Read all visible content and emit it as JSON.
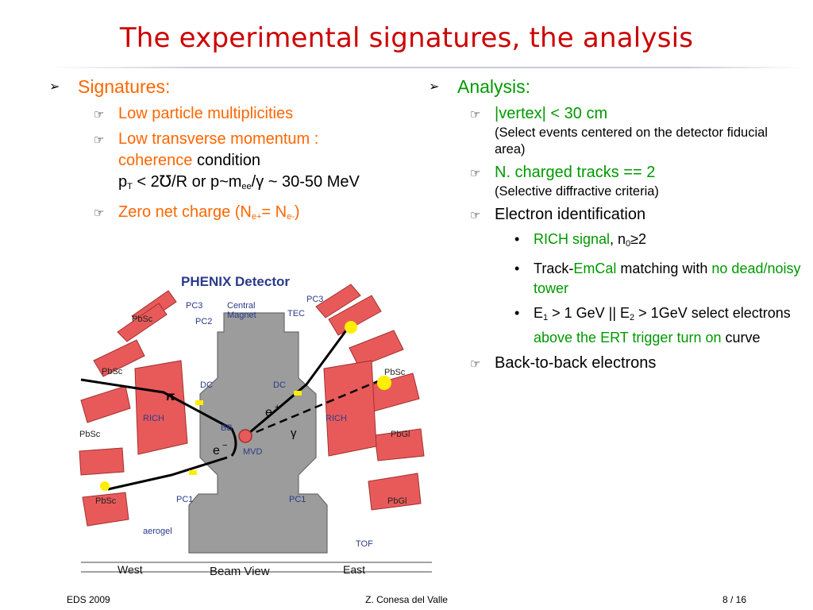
{
  "title": "The experimental signatures, the analysis",
  "left": {
    "heading": "Signatures:",
    "items": [
      {
        "text": "Low particle multiplicities"
      },
      {
        "text_a": "Low transverse momentum :",
        "text_b": "coherence",
        "text_c": "condition",
        "formula_p": "p",
        "formula_sub_T": "T",
        "formula_mid": " < 2℧/R or p~m",
        "formula_sub_ee": "ee",
        "formula_end": "/γ ~ 30-50 MeV"
      },
      {
        "text_a": "Zero net charge (N",
        "sub_a": "e+",
        "text_b": "= N",
        "sub_b": "e-",
        "text_c": ")"
      }
    ]
  },
  "right": {
    "heading": "Analysis:",
    "items": [
      {
        "text": "|vertex| < 30 cm",
        "note": "(Select events centered on the detector fiducial area)"
      },
      {
        "text": "N. charged tracks == 2",
        "note": "(Selective diffractive criteria)"
      },
      {
        "text": "Electron identification",
        "sub_items": [
          {
            "a": "RICH signal",
            "b": ", n",
            "sub": "0",
            "c": "≥2"
          },
          {
            "a": "Track-",
            "b": "EmCal",
            "c": " matching with ",
            "d": "no dead/noisy tower"
          },
          {
            "a": "E",
            "sub1": "1",
            "b": " > 1 GeV || E",
            "sub2": "2",
            "c": " > 1GeV select electrons ",
            "d": "above the ERT trigger turn on",
            "e": " curve"
          }
        ]
      },
      {
        "text": "Back-to-back electrons"
      }
    ]
  },
  "figure": {
    "title": "PHENIX Detector",
    "labels": {
      "pbsc": "PbSc",
      "pbgl": "PbGl",
      "pc1": "PC1",
      "pc2": "PC2",
      "pc3": "PC3",
      "central_magnet": "Central Magnet",
      "central": "Central",
      "magnet": "Magnet",
      "tec": "TEC",
      "dc": "DC",
      "rich": "RICH",
      "bb": "BB",
      "mvd": "MVD",
      "aerogel": "aerogel",
      "tof": "TOF",
      "west": "West",
      "east": "East",
      "beam_view": "Beam View",
      "pi": "π",
      "e_plus": "e",
      "e_minus": "e",
      "plus": "+",
      "minus": "−",
      "gamma": "γ"
    }
  },
  "footer": {
    "left": "EDS 2009",
    "center": "Z. Conesa del Valle",
    "right": "8 / 16"
  },
  "colors": {
    "title": "#cc0000",
    "orange": "#ff6600",
    "green": "#009900",
    "detector": "#e85a5a"
  },
  "icons": {
    "level1": "arrow-bullet-icon",
    "level2": "hand-pointer-bullet-icon",
    "level3": "dot-bullet-icon"
  }
}
